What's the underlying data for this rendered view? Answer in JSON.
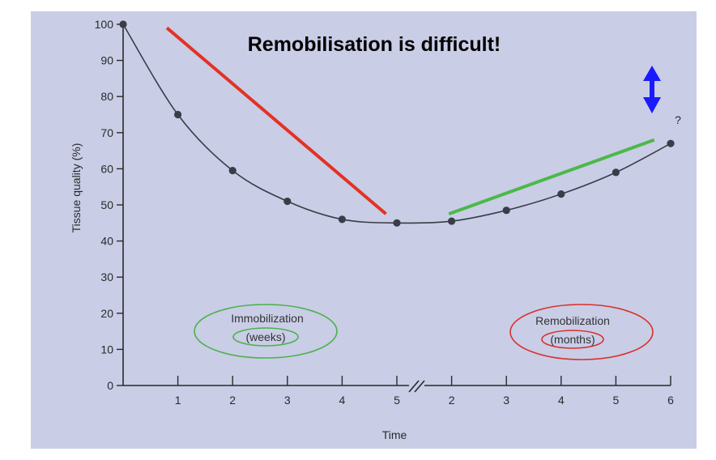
{
  "chart_data": {
    "type": "line",
    "headline": "Remobilisation is difficult!",
    "ylabel": "Tissue quality (%)",
    "xlabel": "Time",
    "ylim": [
      0,
      100
    ],
    "yticks": [
      "0",
      "10",
      "20",
      "30",
      "40",
      "50",
      "60",
      "70",
      "80",
      "90",
      "100"
    ],
    "xticks": [
      "1",
      "2",
      "3",
      "4",
      "5",
      "2",
      "3",
      "4",
      "5",
      "6"
    ],
    "axis_break": "//",
    "question_mark": "?",
    "phases": [
      {
        "label": "Immobilization",
        "unit": "(weeks)",
        "color": "#49b24a"
      },
      {
        "label": "Remobilization",
        "unit": "(months)",
        "color": "#d9302a"
      }
    ],
    "points": [
      {
        "x": 0,
        "y": 100
      },
      {
        "x": 1,
        "y": 75
      },
      {
        "x": 2,
        "y": 59.5
      },
      {
        "x": 3,
        "y": 51
      },
      {
        "x": 4,
        "y": 46
      },
      {
        "x": 5,
        "y": 45
      },
      {
        "x": 6,
        "y": 45.5
      },
      {
        "x": 7,
        "y": 48.5
      },
      {
        "x": 8,
        "y": 53
      },
      {
        "x": 9,
        "y": 59
      },
      {
        "x": 10,
        "y": 67
      }
    ],
    "trend_lines": [
      {
        "name": "decline",
        "color": "#e33224",
        "from": {
          "x": 0.8,
          "y": 99
        },
        "to": {
          "x": 4.8,
          "y": 47.5
        }
      },
      {
        "name": "recovery",
        "color": "#4cb84a",
        "from": {
          "x": 5.95,
          "y": 47.5
        },
        "to": {
          "x": 9.7,
          "y": 68
        }
      }
    ],
    "arrow_color": "#1a1aff",
    "plot_bg": "#c9cde6",
    "grid": false
  }
}
